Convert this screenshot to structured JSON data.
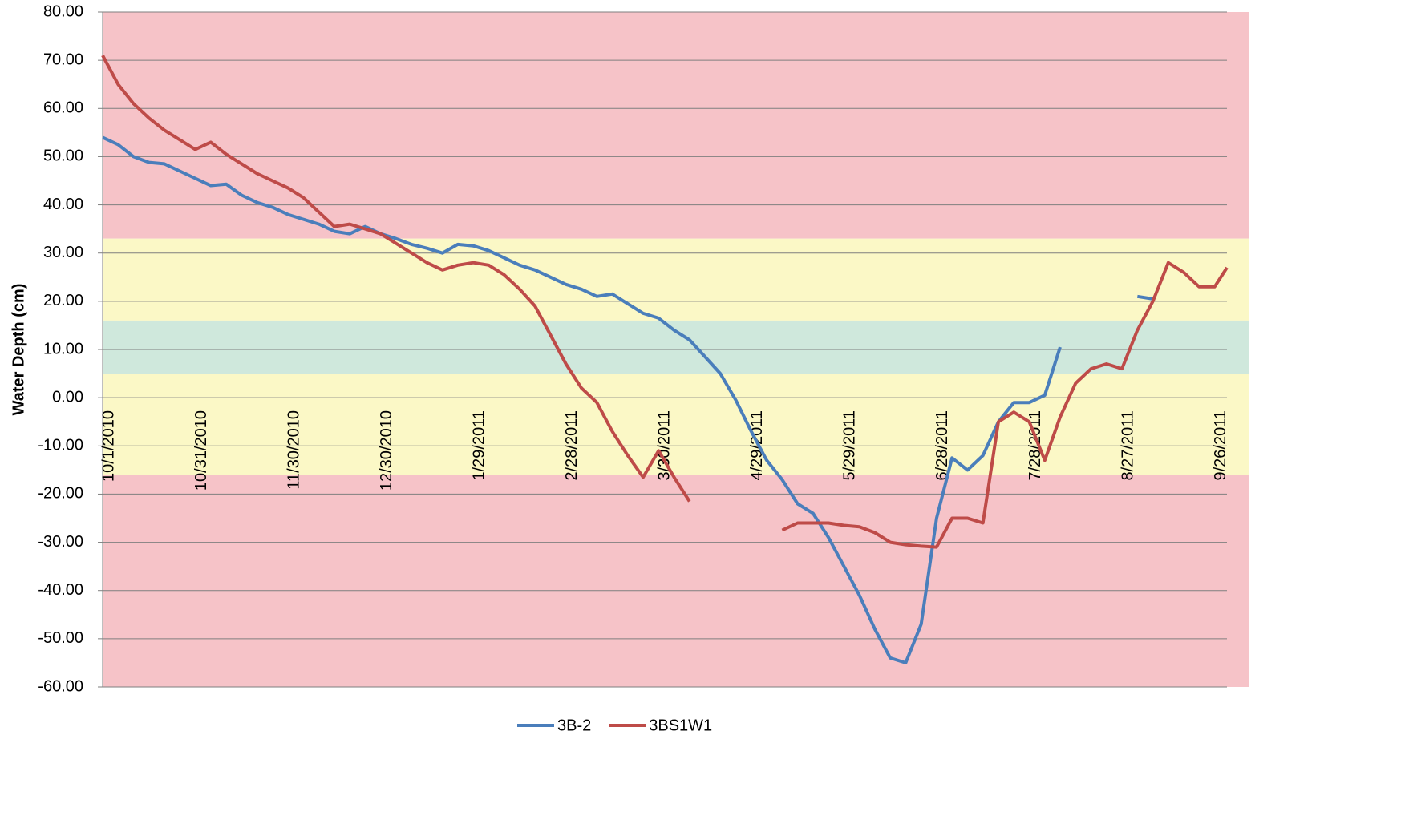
{
  "chart_data": {
    "type": "line",
    "y_label": "Water Depth (cm)",
    "x": [
      "10/1/2010",
      "10/6/2010",
      "10/11/2010",
      "10/16/2010",
      "10/21/2010",
      "10/26/2010",
      "10/31/2010",
      "11/5/2010",
      "11/10/2010",
      "11/15/2010",
      "11/20/2010",
      "11/25/2010",
      "11/30/2010",
      "12/5/2010",
      "12/10/2010",
      "12/15/2010",
      "12/20/2010",
      "12/25/2010",
      "12/30/2010",
      "1/4/2011",
      "1/9/2011",
      "1/14/2011",
      "1/19/2011",
      "1/24/2011",
      "1/29/2011",
      "2/3/2011",
      "2/8/2011",
      "2/13/2011",
      "2/18/2011",
      "2/23/2011",
      "2/28/2011",
      "3/5/2011",
      "3/10/2011",
      "3/15/2011",
      "3/20/2011",
      "3/25/2011",
      "3/30/2011",
      "4/4/2011",
      "4/9/2011",
      "4/14/2011",
      "4/19/2011",
      "4/24/2011",
      "4/29/2011",
      "5/4/2011",
      "5/9/2011",
      "5/14/2011",
      "5/19/2011",
      "5/24/2011",
      "5/29/2011",
      "6/3/2011",
      "6/8/2011",
      "6/13/2011",
      "6/18/2011",
      "6/23/2011",
      "6/28/2011",
      "7/3/2011",
      "7/8/2011",
      "7/13/2011",
      "7/18/2011",
      "7/23/2011",
      "7/28/2011",
      "8/2/2011",
      "8/7/2011",
      "8/12/2011",
      "8/17/2011",
      "8/22/2011",
      "8/27/2011",
      "9/1/2011",
      "9/6/2011",
      "9/11/2011",
      "9/16/2011",
      "9/21/2011",
      "9/26/2011",
      "9/30/2011"
    ],
    "series": [
      {
        "name": "3B-2",
        "color": "#4a7ebb",
        "values": [
          54,
          52.5,
          50,
          48.8,
          48.5,
          47,
          45.5,
          44,
          44.3,
          42,
          40.5,
          39.5,
          38,
          37,
          36,
          34.5,
          34,
          35.5,
          34,
          33,
          31.8,
          31,
          30,
          31.8,
          31.5,
          30.5,
          29,
          27.5,
          26.5,
          25,
          23.5,
          22.5,
          21,
          21.5,
          19.5,
          17.5,
          16.5,
          14,
          12,
          8.5,
          5,
          -0.5,
          -7,
          -13,
          -17,
          -22,
          -24,
          -29,
          -35,
          -41,
          -48,
          -54,
          -55,
          -47,
          -25,
          -12.5,
          -15,
          -12,
          -5,
          -1,
          -1,
          0.5,
          10.5,
          null,
          null,
          null,
          null,
          21,
          20.5,
          null,
          null,
          null,
          null,
          null
        ]
      },
      {
        "name": "3BS1W1",
        "color": "#be4b48",
        "values": [
          71,
          65,
          61,
          58,
          55.5,
          53.5,
          51.5,
          53,
          50.5,
          48.5,
          46.5,
          45,
          43.5,
          41.5,
          38.5,
          35.5,
          36,
          35,
          34,
          32,
          30,
          28,
          26.5,
          27.5,
          28,
          27.5,
          25.5,
          22.5,
          19,
          13,
          7,
          2,
          -1,
          -7,
          -12,
          -16.5,
          -11,
          -16.5,
          -21.5,
          null,
          null,
          null,
          null,
          null,
          -27.5,
          -26,
          -26,
          -26,
          -26.5,
          -26.8,
          -28,
          -30,
          -30.5,
          -30.8,
          -31,
          -25,
          -25,
          -26,
          -5,
          -3,
          -5,
          -13,
          -4,
          3,
          6,
          7,
          6,
          14,
          20,
          28,
          26,
          23,
          23,
          27
        ]
      }
    ],
    "xlim": [
      "10/1/2010",
      "9/30/2011"
    ],
    "xticks": [
      "10/1/2010",
      "10/31/2010",
      "11/30/2010",
      "12/30/2010",
      "1/29/2011",
      "2/28/2011",
      "3/30/2011",
      "4/29/2011",
      "5/29/2011",
      "6/28/2011",
      "7/28/2011",
      "8/27/2011",
      "9/26/2011"
    ],
    "ylim": [
      -60,
      80
    ],
    "yticks": [
      {
        "value": -60,
        "label": "-60.00"
      },
      {
        "value": -50,
        "label": "-50.00"
      },
      {
        "value": -40,
        "label": "-40.00"
      },
      {
        "value": -30,
        "label": "-30.00"
      },
      {
        "value": -20,
        "label": "-20.00"
      },
      {
        "value": -10,
        "label": "-10.00"
      },
      {
        "value": 0,
        "label": "0.00"
      },
      {
        "value": 10,
        "label": "10.00"
      },
      {
        "value": 20,
        "label": "20.00"
      },
      {
        "value": 30,
        "label": "30.00"
      },
      {
        "value": 40,
        "label": "40.00"
      },
      {
        "value": 50,
        "label": "50.00"
      },
      {
        "value": 60,
        "label": "60.00"
      },
      {
        "value": 70,
        "label": "70.00"
      },
      {
        "value": 80,
        "label": "80.00"
      }
    ],
    "bands": [
      {
        "from": 33,
        "to": 80,
        "color": "#f6c3c8"
      },
      {
        "from": 16,
        "to": 33,
        "color": "#fbf8c6"
      },
      {
        "from": 5,
        "to": 16,
        "color": "#cfe8dc"
      },
      {
        "from": -16,
        "to": 5,
        "color": "#fbf8c6"
      },
      {
        "from": -60,
        "to": -16,
        "color": "#f6c3c8"
      }
    ],
    "grid": true,
    "legend": "bottom"
  }
}
